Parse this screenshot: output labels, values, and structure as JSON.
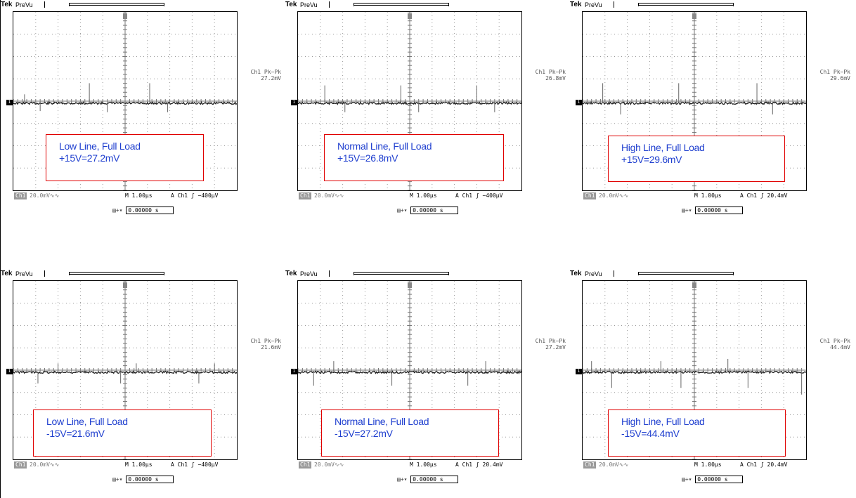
{
  "scopes": [
    {
      "brand": "Tek",
      "mode": "PreVu",
      "meas_title": "Ch1 Pk−Pk",
      "meas_value": "27.2mV",
      "ch_label": "Ch1",
      "scale": "20.0mV∿∿",
      "timebase": "M 1.00µs",
      "trigger": "A  Ch1  ʃ  −400µV",
      "position": "0.00000 s",
      "note_line1": "Low Line, Full Load",
      "note_line2": "+15V=27.2mV"
    },
    {
      "brand": "Tek",
      "mode": "PreVu",
      "meas_title": "Ch1 Pk−Pk",
      "meas_value": "26.8mV",
      "ch_label": "Ch1",
      "scale": "20.0mV∿∿",
      "timebase": "M 1.00µs",
      "trigger": "A  Ch1  ʃ  −400µV",
      "position": "0.00000 s",
      "note_line1": "Normal Line, Full Load",
      "note_line2": "+15V=26.8mV"
    },
    {
      "brand": "Tek",
      "mode": "PreVu",
      "meas_title": "Ch1 Pk−Pk",
      "meas_value": "29.6mV",
      "ch_label": "Ch1",
      "scale": "20.0mV∿∿",
      "timebase": "M 1.00µs",
      "trigger": "A  Ch1  ʃ  20.4mV",
      "position": "0.00000 s",
      "note_line1": "High Line, Full Load",
      "note_line2": "+15V=29.6mV"
    },
    {
      "brand": "Tek",
      "mode": "PreVu",
      "meas_title": "Ch1 Pk−Pk",
      "meas_value": "21.6mV",
      "ch_label": "Ch1",
      "scale": "20.0mV∿∿",
      "timebase": "M 1.00µs",
      "trigger": "A  Ch1  ʃ  −400µV",
      "position": "0.00000 s",
      "note_line1": "Low Line, Full Load",
      "note_line2": "-15V=21.6mV"
    },
    {
      "brand": "Tek",
      "mode": "PreVu",
      "meas_title": "Ch1 Pk−Pk",
      "meas_value": "27.2mV",
      "ch_label": "Ch1",
      "scale": "20.0mV∿∿",
      "timebase": "M 1.00µs",
      "trigger": "A  Ch1  ʃ  20.4mV",
      "position": "0.00000 s",
      "note_line1": "Normal Line, Full Load",
      "note_line2": "-15V=27.2mV"
    },
    {
      "brand": "Tek",
      "mode": "PreVu",
      "meas_title": "Ch1 Pk−Pk",
      "meas_value": "44.4mV",
      "ch_label": "Ch1",
      "scale": "20.0mV∿∿",
      "timebase": "M 1.00µs",
      "trigger": "A  Ch1  ʃ  20.4mV",
      "position": "0.00000 s",
      "note_line1": "High Line, Full Load",
      "note_line2": "-15V=44.4mV"
    }
  ],
  "chart_data": [
    {
      "type": "line",
      "x_divisions": 10,
      "y_divisions": 8,
      "x_per_div_us": 1.0,
      "y_per_div_mV": 20.0,
      "xlim_us": [
        -5,
        5
      ],
      "ylim_mV": [
        -80,
        80
      ],
      "grid": true,
      "series": [
        {
          "x_us": [
            -4.5,
            -3.8,
            -1.6,
            -0.8,
            1.1,
            1.9
          ],
          "spike_mV": [
            8,
            -7,
            18,
            -8,
            18,
            -8
          ]
        }
      ],
      "peak_to_peak_mV": 27.2
    },
    {
      "type": "line",
      "x_divisions": 10,
      "y_divisions": 8,
      "x_per_div_us": 1.0,
      "y_per_div_mV": 20.0,
      "xlim_us": [
        -5,
        5
      ],
      "ylim_mV": [
        -80,
        80
      ],
      "grid": true,
      "series": [
        {
          "x_us": [
            -3.8,
            -2.9,
            -0.4,
            0.4,
            3.0,
            3.8
          ],
          "spike_mV": [
            16,
            -8,
            16,
            -8,
            16,
            -8
          ]
        }
      ],
      "peak_to_peak_mV": 26.8
    },
    {
      "type": "line",
      "x_divisions": 10,
      "y_divisions": 8,
      "x_per_div_us": 1.0,
      "y_per_div_mV": 20.0,
      "xlim_us": [
        -5,
        5
      ],
      "ylim_mV": [
        -80,
        80
      ],
      "grid": true,
      "series": [
        {
          "x_us": [
            -4.1,
            -3.3,
            -0.7,
            0.0,
            2.8,
            3.5
          ],
          "spike_mV": [
            18,
            -10,
            18,
            -10,
            18,
            -10
          ]
        }
      ],
      "peak_to_peak_mV": 29.6
    },
    {
      "type": "line",
      "x_divisions": 10,
      "y_divisions": 8,
      "x_per_div_us": 1.0,
      "y_per_div_mV": 20.0,
      "xlim_us": [
        -5,
        5
      ],
      "ylim_mV": [
        -80,
        80
      ],
      "grid": true,
      "series": [
        {
          "x_us": [
            -3.9,
            -3.0,
            -0.2,
            0.5,
            3.3,
            4.0
          ],
          "spike_mV": [
            -10,
            8,
            -10,
            8,
            -10,
            8
          ]
        }
      ],
      "peak_to_peak_mV": 21.6
    },
    {
      "type": "line",
      "x_divisions": 10,
      "y_divisions": 8,
      "x_per_div_us": 1.0,
      "y_per_div_mV": 20.0,
      "xlim_us": [
        -5,
        5
      ],
      "ylim_mV": [
        -80,
        80
      ],
      "grid": true,
      "series": [
        {
          "x_us": [
            -4.3,
            -3.4,
            -0.8,
            0.0,
            2.6,
            3.4
          ],
          "spike_mV": [
            -12,
            10,
            -12,
            10,
            -12,
            10
          ]
        }
      ],
      "peak_to_peak_mV": 27.2
    },
    {
      "type": "line",
      "x_divisions": 10,
      "y_divisions": 8,
      "x_per_div_us": 1.0,
      "y_per_div_mV": 20.0,
      "xlim_us": [
        -5,
        5
      ],
      "ylim_mV": [
        -80,
        80
      ],
      "grid": true,
      "series": [
        {
          "x_us": [
            -4.6,
            -3.7,
            -1.5,
            -0.6,
            1.5,
            2.4,
            4.8
          ],
          "spike_mV": [
            10,
            -14,
            10,
            -14,
            12,
            -14,
            -20
          ]
        }
      ],
      "peak_to_peak_mV": 44.4
    }
  ]
}
